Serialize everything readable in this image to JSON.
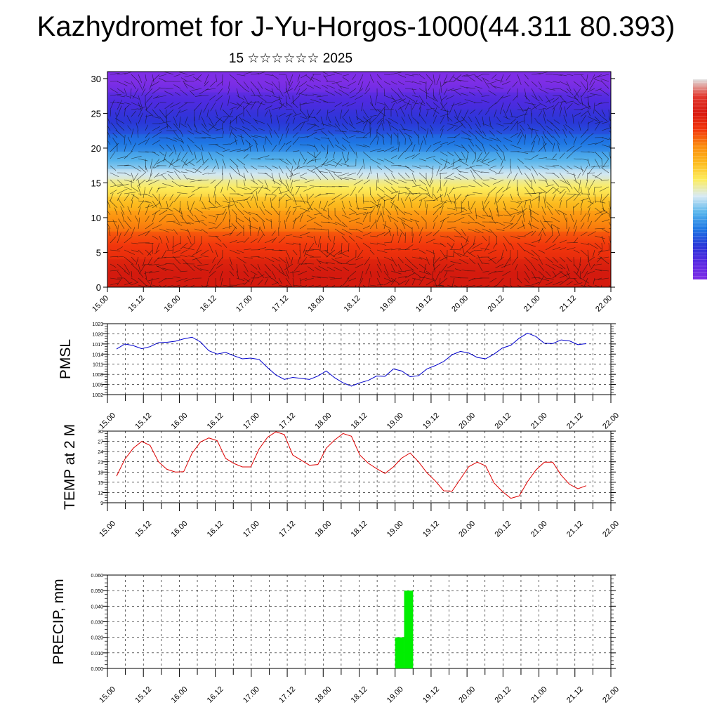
{
  "header": {
    "title": "Kazhydromet for J-Yu-Horgos-1000(44.311 80.393)",
    "subtitle": "15 ☆☆☆☆☆☆ 2025"
  },
  "chart_data": [
    {
      "type": "heatmap",
      "title": "",
      "xlabel": "",
      "ylabel": "",
      "x_tick_labels": [
        "15.00",
        "15.12",
        "16.00",
        "16.12",
        "17.00",
        "17.12",
        "18.00",
        "18.12",
        "19.00",
        "19.12",
        "20.00",
        "20.12",
        "21.00",
        "21.12",
        "22.00"
      ],
      "y_ticks": [
        0,
        5,
        10,
        15,
        20,
        25,
        30
      ],
      "ylim": [
        0,
        31
      ],
      "bands": [
        {
          "from": 0,
          "to": 4,
          "color": "#d41a0e"
        },
        {
          "from": 4,
          "to": 8,
          "color": "#f2360c"
        },
        {
          "from": 8,
          "to": 11,
          "color": "#fb8c0e"
        },
        {
          "from": 11,
          "to": 13,
          "color": "#fdbb1e"
        },
        {
          "from": 13,
          "to": 15.5,
          "color": "#fdec5c"
        },
        {
          "from": 15.5,
          "to": 17,
          "color": "#d2e8f2"
        },
        {
          "from": 17,
          "to": 19.5,
          "color": "#56b4ec"
        },
        {
          "from": 19.5,
          "to": 22,
          "color": "#1e76e4"
        },
        {
          "from": 22,
          "to": 25.5,
          "color": "#2a36d8"
        },
        {
          "from": 25.5,
          "to": 28,
          "color": "#4e2ae0"
        },
        {
          "from": 28,
          "to": 31,
          "color": "#7e2ee6"
        }
      ],
      "overlay": "wind vectors",
      "colorbar": [
        "#e0e0e0",
        "#e23a30",
        "#d81a10",
        "#f2360c",
        "#fb8c0e",
        "#fdbb1e",
        "#fdec5c",
        "#d8eaf4",
        "#56b4ec",
        "#1e76e4",
        "#2a36d8",
        "#5a2ae2",
        "#7e2ee6"
      ]
    },
    {
      "type": "line",
      "ylabel": "PMSL",
      "ylim": [
        1002,
        1023
      ],
      "y_ticks": [
        1002,
        1005,
        1008,
        1011,
        1014,
        1017,
        1020,
        1023
      ],
      "x_tick_labels": [
        "15.00",
        "15.12",
        "16.00",
        "16.12",
        "17.00",
        "17.12",
        "18.00",
        "18.12",
        "19.00",
        "19.12",
        "20.00",
        "20.12",
        "21.00",
        "21.12",
        "22.00"
      ],
      "color": "#0000cc",
      "values": [
        1015.5,
        1017,
        1016.5,
        1015.6,
        1016.2,
        1017.4,
        1017.5,
        1017.8,
        1018.5,
        1019,
        1017.6,
        1015,
        1014,
        1014.5,
        1013.5,
        1012.6,
        1012.8,
        1012.4,
        1010,
        1007.8,
        1006.5,
        1007.1,
        1006.8,
        1006.5,
        1007.5,
        1009,
        1007,
        1005.5,
        1004.5,
        1005.5,
        1006.2,
        1007.5,
        1007.4,
        1009.6,
        1009,
        1007.3,
        1007.6,
        1009.6,
        1010.6,
        1011.8,
        1013.8,
        1014.8,
        1014.3,
        1013,
        1012.6,
        1014,
        1015.8,
        1016.6,
        1018.7,
        1020.2,
        1019.2,
        1017.2,
        1017.1,
        1018.2,
        1017.9,
        1016.8,
        1017.1
      ]
    },
    {
      "type": "line",
      "ylabel": "TEMP at 2 M",
      "ylim": [
        9,
        30
      ],
      "y_ticks": [
        9,
        12,
        15,
        18,
        21,
        24,
        27,
        30
      ],
      "x_tick_labels": [
        "15.00",
        "15.12",
        "16.00",
        "16.12",
        "17.00",
        "17.12",
        "18.00",
        "18.12",
        "19.00",
        "19.12",
        "20.00",
        "20.12",
        "21.00",
        "21.12",
        "22.00"
      ],
      "color": "#dd0000",
      "values": [
        16.8,
        21.8,
        25,
        27,
        25.8,
        21,
        18.8,
        18,
        18.1,
        23.5,
        26.8,
        28,
        27.2,
        22,
        20.5,
        19.5,
        19.5,
        24.8,
        28.2,
        29.8,
        29,
        23,
        21.5,
        20,
        20.2,
        25,
        27.4,
        29.3,
        28.5,
        23,
        20.6,
        19,
        17.6,
        19.5,
        22.1,
        23.6,
        21,
        17.8,
        15.4,
        12.5,
        12.4,
        16,
        19.6,
        20.9,
        19.8,
        14.8,
        12.3,
        10.3,
        11,
        15.2,
        18.6,
        20.9,
        20.9,
        17.1,
        14.4,
        13.1,
        14
      ]
    },
    {
      "type": "bar",
      "ylabel": "PRECIP, mm",
      "ylim": [
        0,
        0.06
      ],
      "y_ticks": [
        "0.000",
        "0.010",
        "0.020",
        "0.030",
        "0.040",
        "0.050",
        "0.060"
      ],
      "x_tick_labels": [
        "15.00",
        "15.12",
        "16.00",
        "16.12",
        "17.00",
        "17.12",
        "18.00",
        "18.12",
        "19.00",
        "19.12",
        "20.00",
        "20.12",
        "21.00",
        "21.12",
        "22.00"
      ],
      "color": "#00ee00",
      "bars": [
        {
          "from_hour": 96,
          "to_hour": 99,
          "value": 0.02
        },
        {
          "from_hour": 99,
          "to_hour": 102,
          "value": 0.05
        }
      ]
    }
  ]
}
